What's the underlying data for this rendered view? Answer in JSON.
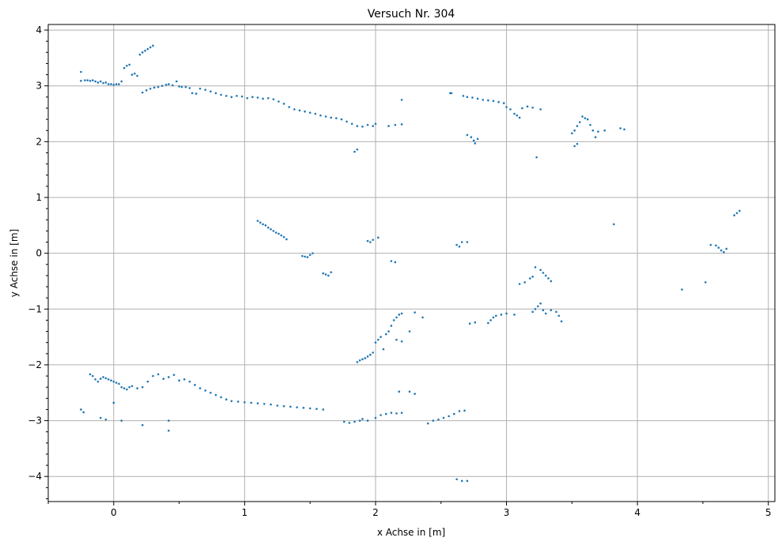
{
  "chart_data": {
    "type": "scatter",
    "title": "Versuch Nr. 304",
    "xlabel": "x Achse in [m]",
    "ylabel": "y Achse in [m]",
    "xlim": [
      -0.5,
      5.05
    ],
    "ylim": [
      -4.45,
      4.1
    ],
    "xticks": [
      0,
      1,
      2,
      3,
      4,
      5
    ],
    "yticks": [
      -4,
      -3,
      -2,
      -1,
      0,
      1,
      2,
      3,
      4
    ],
    "grid": true,
    "point_color": "#1f77b4",
    "grid_color": "#b0b0b0",
    "series": [
      {
        "points": [
          [
            -0.25,
            3.25
          ],
          [
            -0.25,
            3.09
          ],
          [
            -0.22,
            3.1
          ],
          [
            -0.2,
            3.1
          ],
          [
            -0.18,
            3.09
          ],
          [
            -0.16,
            3.1
          ],
          [
            -0.14,
            3.08
          ],
          [
            -0.12,
            3.06
          ],
          [
            -0.1,
            3.08
          ],
          [
            -0.08,
            3.05
          ],
          [
            -0.06,
            3.06
          ],
          [
            -0.04,
            3.03
          ],
          [
            -0.02,
            3.03
          ],
          [
            0.0,
            3.02
          ],
          [
            0.02,
            3.03
          ],
          [
            0.04,
            3.03
          ],
          [
            0.06,
            3.08
          ],
          [
            0.08,
            3.32
          ],
          [
            0.1,
            3.36
          ],
          [
            0.12,
            3.38
          ],
          [
            0.14,
            3.2
          ],
          [
            0.16,
            3.22
          ],
          [
            0.18,
            3.18
          ],
          [
            0.2,
            3.56
          ],
          [
            0.22,
            3.6
          ],
          [
            0.24,
            3.63
          ],
          [
            0.26,
            3.66
          ],
          [
            0.28,
            3.69
          ],
          [
            0.3,
            3.72
          ],
          [
            0.22,
            2.88
          ],
          [
            0.25,
            2.92
          ],
          [
            0.28,
            2.95
          ],
          [
            0.31,
            2.97
          ],
          [
            0.34,
            2.98
          ],
          [
            0.37,
            3.0
          ],
          [
            0.4,
            3.02
          ],
          [
            0.42,
            3.03
          ],
          [
            0.45,
            3.01
          ],
          [
            0.48,
            3.08
          ],
          [
            0.5,
            2.99
          ],
          [
            0.52,
            2.98
          ],
          [
            0.55,
            2.98
          ],
          [
            0.58,
            2.96
          ],
          [
            0.6,
            2.87
          ],
          [
            0.63,
            2.86
          ],
          [
            0.66,
            2.95
          ],
          [
            0.7,
            2.93
          ],
          [
            0.74,
            2.9
          ],
          [
            0.78,
            2.87
          ],
          [
            0.82,
            2.84
          ],
          [
            0.86,
            2.82
          ],
          [
            0.9,
            2.8
          ],
          [
            0.94,
            2.82
          ],
          [
            0.98,
            2.81
          ],
          [
            1.02,
            2.78
          ],
          [
            1.06,
            2.8
          ],
          [
            1.1,
            2.79
          ],
          [
            1.14,
            2.77
          ],
          [
            1.18,
            2.78
          ],
          [
            1.22,
            2.76
          ],
          [
            1.26,
            2.72
          ],
          [
            1.3,
            2.68
          ],
          [
            1.34,
            2.62
          ],
          [
            1.38,
            2.58
          ],
          [
            1.42,
            2.56
          ],
          [
            1.46,
            2.54
          ],
          [
            1.5,
            2.52
          ],
          [
            1.54,
            2.5
          ],
          [
            1.58,
            2.47
          ],
          [
            1.62,
            2.45
          ],
          [
            1.66,
            2.43
          ],
          [
            1.7,
            2.42
          ],
          [
            1.74,
            2.4
          ],
          [
            1.78,
            2.36
          ],
          [
            1.82,
            2.32
          ],
          [
            1.86,
            2.28
          ],
          [
            1.9,
            2.27
          ],
          [
            1.94,
            2.3
          ],
          [
            1.98,
            2.28
          ],
          [
            2.0,
            2.32
          ],
          [
            2.1,
            2.28
          ],
          [
            2.15,
            2.3
          ],
          [
            2.2,
            2.31
          ],
          [
            1.84,
            1.82
          ],
          [
            1.86,
            1.86
          ],
          [
            2.2,
            2.75
          ],
          [
            2.57,
            2.87
          ],
          [
            2.58,
            2.87
          ],
          [
            2.67,
            2.82
          ],
          [
            2.7,
            2.8
          ],
          [
            2.74,
            2.79
          ],
          [
            2.78,
            2.77
          ],
          [
            2.82,
            2.75
          ],
          [
            2.86,
            2.74
          ],
          [
            2.9,
            2.73
          ],
          [
            2.94,
            2.71
          ],
          [
            2.98,
            2.69
          ],
          [
            3.0,
            2.62
          ],
          [
            3.03,
            2.58
          ],
          [
            3.06,
            2.5
          ],
          [
            3.08,
            2.47
          ],
          [
            3.1,
            2.43
          ],
          [
            3.12,
            2.6
          ],
          [
            3.16,
            2.63
          ],
          [
            3.2,
            2.61
          ],
          [
            3.26,
            2.58
          ],
          [
            2.7,
            2.12
          ],
          [
            2.73,
            2.08
          ],
          [
            2.75,
            2.02
          ],
          [
            2.76,
            1.97
          ],
          [
            2.78,
            2.05
          ],
          [
            3.23,
            1.72
          ],
          [
            3.5,
            2.15
          ],
          [
            3.52,
            2.2
          ],
          [
            3.54,
            2.28
          ],
          [
            3.56,
            2.35
          ],
          [
            3.58,
            2.45
          ],
          [
            3.6,
            2.42
          ],
          [
            3.62,
            2.4
          ],
          [
            3.64,
            2.3
          ],
          [
            3.66,
            2.2
          ],
          [
            3.7,
            2.18
          ],
          [
            3.75,
            2.2
          ],
          [
            3.87,
            2.24
          ],
          [
            3.9,
            2.22
          ],
          [
            3.52,
            1.92
          ],
          [
            3.54,
            1.96
          ],
          [
            3.68,
            2.08
          ],
          [
            1.1,
            0.58
          ],
          [
            1.12,
            0.55
          ],
          [
            1.14,
            0.52
          ],
          [
            1.16,
            0.5
          ],
          [
            1.18,
            0.46
          ],
          [
            1.2,
            0.43
          ],
          [
            1.22,
            0.4
          ],
          [
            1.24,
            0.37
          ],
          [
            1.26,
            0.35
          ],
          [
            1.28,
            0.32
          ],
          [
            1.3,
            0.29
          ],
          [
            1.32,
            0.25
          ],
          [
            1.44,
            -0.05
          ],
          [
            1.46,
            -0.06
          ],
          [
            1.48,
            -0.07
          ],
          [
            1.5,
            -0.03
          ],
          [
            1.52,
            0.0
          ],
          [
            1.6,
            -0.36
          ],
          [
            1.62,
            -0.38
          ],
          [
            1.64,
            -0.4
          ],
          [
            1.66,
            -0.34
          ],
          [
            1.94,
            0.22
          ],
          [
            1.96,
            0.2
          ],
          [
            1.98,
            0.24
          ],
          [
            2.02,
            0.28
          ],
          [
            2.12,
            -0.14
          ],
          [
            2.15,
            -0.16
          ],
          [
            2.62,
            0.15
          ],
          [
            2.64,
            0.12
          ],
          [
            2.66,
            0.2
          ],
          [
            2.7,
            0.2
          ],
          [
            3.1,
            -0.55
          ],
          [
            3.14,
            -0.52
          ],
          [
            3.18,
            -0.45
          ],
          [
            3.2,
            -0.42
          ],
          [
            3.22,
            -0.25
          ],
          [
            3.26,
            -0.3
          ],
          [
            3.28,
            -0.35
          ],
          [
            3.3,
            -0.4
          ],
          [
            3.32,
            -0.45
          ],
          [
            3.34,
            -0.5
          ],
          [
            3.82,
            0.52
          ],
          [
            4.34,
            -0.65
          ],
          [
            4.52,
            -0.52
          ],
          [
            4.56,
            0.15
          ],
          [
            4.6,
            0.14
          ],
          [
            4.62,
            0.1
          ],
          [
            4.64,
            0.05
          ],
          [
            4.66,
            0.02
          ],
          [
            4.68,
            0.08
          ],
          [
            4.74,
            0.68
          ],
          [
            4.76,
            0.72
          ],
          [
            4.78,
            0.76
          ],
          [
            1.86,
            -1.95
          ],
          [
            1.88,
            -1.92
          ],
          [
            1.9,
            -1.9
          ],
          [
            1.92,
            -1.88
          ],
          [
            1.94,
            -1.85
          ],
          [
            1.96,
            -1.82
          ],
          [
            1.98,
            -1.78
          ],
          [
            2.0,
            -1.6
          ],
          [
            2.02,
            -1.55
          ],
          [
            2.04,
            -1.5
          ],
          [
            2.06,
            -1.72
          ],
          [
            2.08,
            -1.45
          ],
          [
            2.1,
            -1.4
          ],
          [
            2.12,
            -1.3
          ],
          [
            2.14,
            -1.2
          ],
          [
            2.16,
            -1.15
          ],
          [
            2.18,
            -1.1
          ],
          [
            2.2,
            -1.08
          ],
          [
            2.26,
            -1.4
          ],
          [
            2.3,
            -1.06
          ],
          [
            2.36,
            -1.15
          ],
          [
            2.18,
            -2.48
          ],
          [
            2.26,
            -2.48
          ],
          [
            2.3,
            -2.52
          ],
          [
            2.16,
            -1.55
          ],
          [
            2.2,
            -1.58
          ],
          [
            2.72,
            -1.26
          ],
          [
            2.76,
            -1.24
          ],
          [
            2.86,
            -1.25
          ],
          [
            2.88,
            -1.2
          ],
          [
            2.9,
            -1.15
          ],
          [
            2.92,
            -1.12
          ],
          [
            2.96,
            -1.1
          ],
          [
            3.0,
            -1.08
          ],
          [
            3.06,
            -1.1
          ],
          [
            3.2,
            -1.05
          ],
          [
            3.22,
            -1.0
          ],
          [
            3.24,
            -0.95
          ],
          [
            3.26,
            -0.9
          ],
          [
            3.28,
            -1.02
          ],
          [
            3.3,
            -1.08
          ],
          [
            3.34,
            -1.02
          ],
          [
            3.38,
            -1.05
          ],
          [
            3.4,
            -1.12
          ],
          [
            3.42,
            -1.22
          ],
          [
            -0.18,
            -2.17
          ],
          [
            -0.16,
            -2.2
          ],
          [
            -0.14,
            -2.26
          ],
          [
            -0.12,
            -2.3
          ],
          [
            -0.1,
            -2.25
          ],
          [
            -0.08,
            -2.22
          ],
          [
            -0.06,
            -2.24
          ],
          [
            -0.04,
            -2.26
          ],
          [
            -0.02,
            -2.28
          ],
          [
            0.0,
            -2.3
          ],
          [
            0.02,
            -2.32
          ],
          [
            0.04,
            -2.34
          ],
          [
            0.06,
            -2.4
          ],
          [
            0.08,
            -2.42
          ],
          [
            0.1,
            -2.44
          ],
          [
            0.12,
            -2.4
          ],
          [
            0.14,
            -2.38
          ],
          [
            0.18,
            -2.42
          ],
          [
            0.22,
            -2.4
          ],
          [
            0.26,
            -2.3
          ],
          [
            0.3,
            -2.2
          ],
          [
            0.34,
            -2.17
          ],
          [
            0.38,
            -2.25
          ],
          [
            0.42,
            -2.22
          ],
          [
            0.46,
            -2.18
          ],
          [
            0.5,
            -2.28
          ],
          [
            0.54,
            -2.26
          ],
          [
            0.58,
            -2.3
          ],
          [
            0.62,
            -2.36
          ],
          [
            0.66,
            -2.42
          ],
          [
            0.7,
            -2.46
          ],
          [
            0.74,
            -2.5
          ],
          [
            0.78,
            -2.54
          ],
          [
            0.82,
            -2.58
          ],
          [
            0.86,
            -2.62
          ],
          [
            0.9,
            -2.65
          ],
          [
            0.95,
            -2.66
          ],
          [
            1.0,
            -2.67
          ],
          [
            1.05,
            -2.68
          ],
          [
            1.1,
            -2.69
          ],
          [
            1.15,
            -2.7
          ],
          [
            1.2,
            -2.71
          ],
          [
            1.25,
            -2.73
          ],
          [
            1.3,
            -2.74
          ],
          [
            1.35,
            -2.75
          ],
          [
            1.4,
            -2.76
          ],
          [
            1.45,
            -2.77
          ],
          [
            1.5,
            -2.78
          ],
          [
            1.55,
            -2.79
          ],
          [
            1.6,
            -2.8
          ],
          [
            1.76,
            -3.02
          ],
          [
            1.8,
            -3.04
          ],
          [
            1.84,
            -3.02
          ],
          [
            1.88,
            -3.0
          ],
          [
            1.9,
            -2.97
          ],
          [
            1.94,
            -3.0
          ],
          [
            2.0,
            -2.95
          ],
          [
            2.04,
            -2.9
          ],
          [
            2.08,
            -2.88
          ],
          [
            2.12,
            -2.86
          ],
          [
            2.16,
            -2.87
          ],
          [
            2.2,
            -2.86
          ],
          [
            2.4,
            -3.05
          ],
          [
            2.44,
            -3.0
          ],
          [
            2.48,
            -2.98
          ],
          [
            2.52,
            -2.95
          ],
          [
            2.56,
            -2.92
          ],
          [
            2.6,
            -2.88
          ],
          [
            2.64,
            -2.83
          ],
          [
            2.68,
            -2.82
          ],
          [
            -0.25,
            -2.8
          ],
          [
            -0.23,
            -2.85
          ],
          [
            -0.1,
            -2.95
          ],
          [
            -0.06,
            -2.98
          ],
          [
            0.0,
            -2.68
          ],
          [
            0.06,
            -3.0
          ],
          [
            0.22,
            -3.08
          ],
          [
            0.42,
            -3.18
          ],
          [
            0.42,
            -3.0
          ],
          [
            2.62,
            -4.05
          ],
          [
            2.66,
            -4.08
          ],
          [
            2.7,
            -4.08
          ]
        ]
      }
    ]
  }
}
